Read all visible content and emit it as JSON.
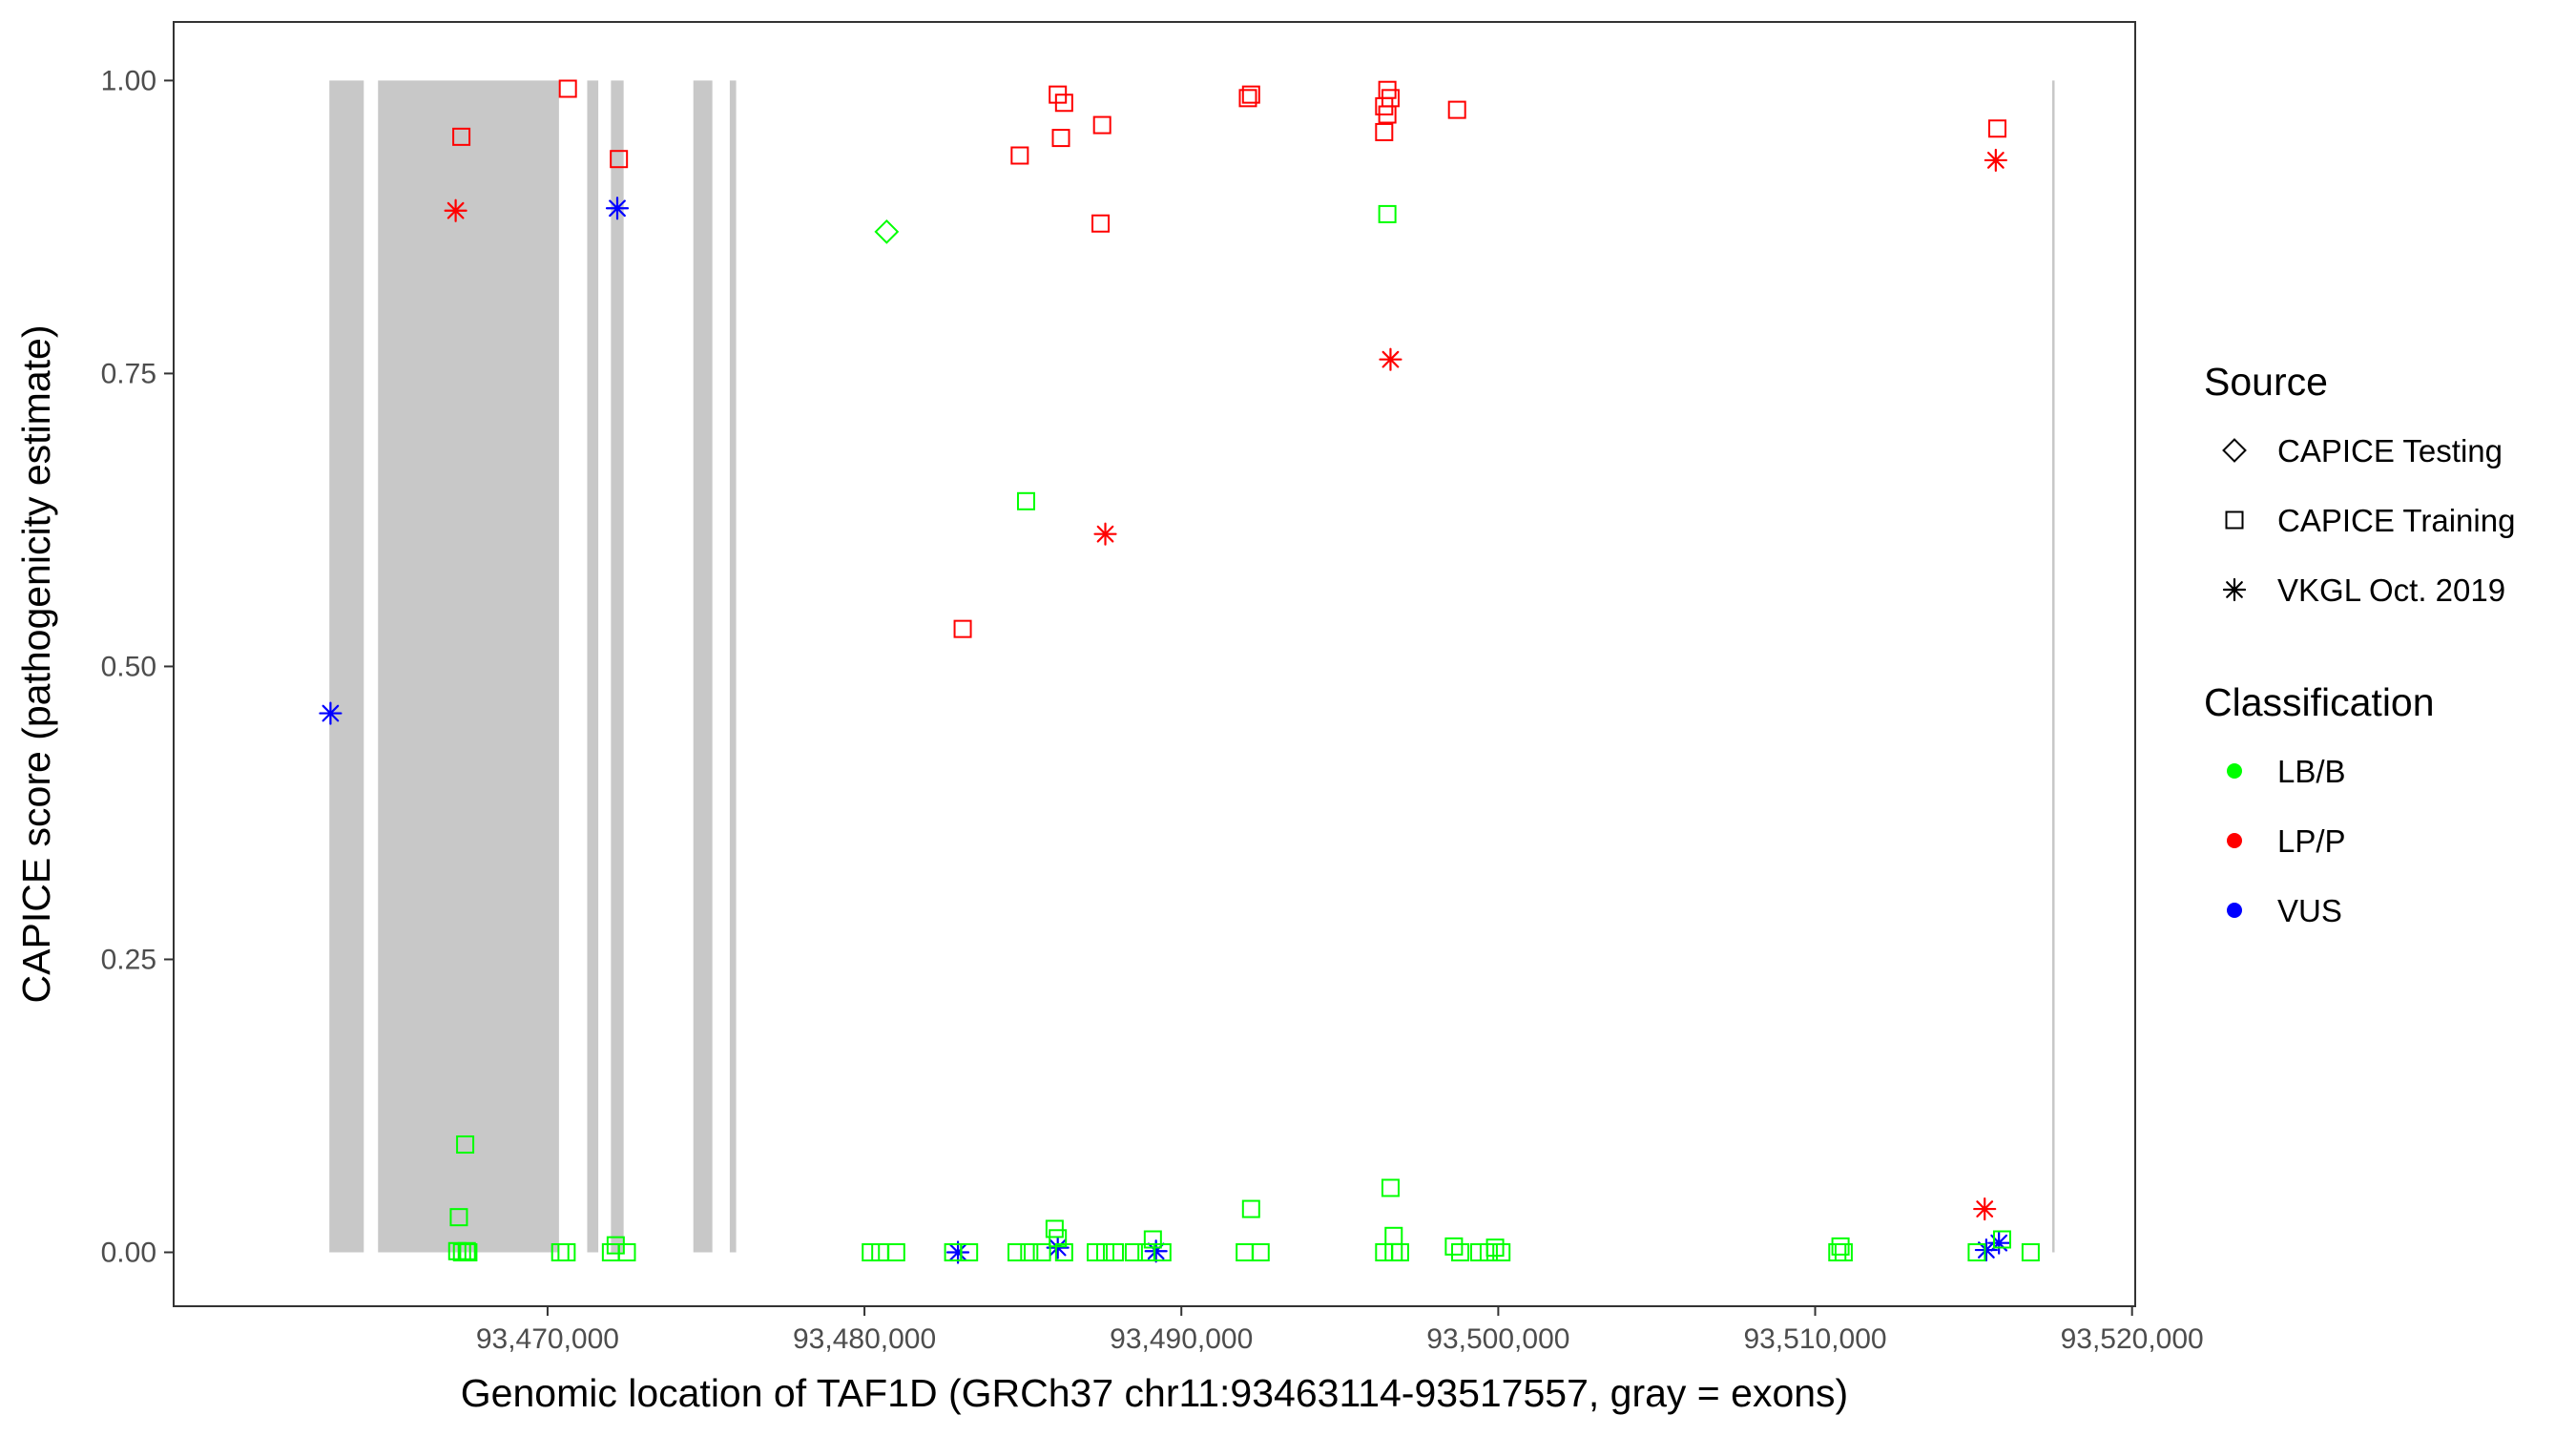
{
  "chart_data": {
    "type": "scatter",
    "title": "",
    "xlabel": "Genomic location of TAF1D (GRCh37 chr11:93463114-93517557, gray = exons)",
    "ylabel": "CAPICE score (pathogenicity estimate)",
    "xlim": [
      93458200,
      93520100
    ],
    "ylim": [
      -0.046,
      1.05
    ],
    "x_ticks": [
      93470000,
      93480000,
      93490000,
      93500000,
      93510000,
      93520000
    ],
    "x_tick_labels": [
      "93,470,000",
      "93,480,000",
      "93,490,000",
      "93,500,000",
      "93,510,000",
      "93,520,000"
    ],
    "y_ticks": [
      0,
      0.25,
      0.5,
      0.75,
      1
    ],
    "y_tick_labels": [
      "0.00",
      "0.25",
      "0.50",
      "0.75",
      "1.00"
    ],
    "grid": false,
    "legend_position": "right",
    "exons": [
      [
        93463114,
        93464200
      ],
      [
        93464650,
        93470360
      ],
      [
        93471250,
        93471600
      ],
      [
        93472000,
        93472400
      ],
      [
        93474600,
        93475200
      ],
      [
        93475750,
        93475950
      ],
      [
        93517480,
        93517557
      ]
    ],
    "legends": [
      {
        "title": "Source",
        "entries": [
          {
            "label": "CAPICE Testing",
            "shape": "diamond"
          },
          {
            "label": "CAPICE Training",
            "shape": "square"
          },
          {
            "label": "VKGL Oct. 2019",
            "shape": "asterisk"
          }
        ]
      },
      {
        "title": "Classification",
        "entries": [
          {
            "label": "LB/B",
            "color": "#00ff00"
          },
          {
            "label": "LP/P",
            "color": "#ff0000"
          },
          {
            "label": "VUS",
            "color": "#0000ff"
          }
        ]
      }
    ],
    "series": [
      {
        "source": "CAPICE Training",
        "class": "LP/P",
        "shape": "square",
        "color": "#ff0000",
        "points": [
          [
            93467280,
            0.952
          ],
          [
            93470640,
            0.993
          ],
          [
            93472250,
            0.933
          ],
          [
            93484900,
            0.936
          ],
          [
            93486100,
            0.988
          ],
          [
            93486300,
            0.981
          ],
          [
            93486200,
            0.951
          ],
          [
            93487500,
            0.962
          ],
          [
            93487450,
            0.878
          ],
          [
            93483100,
            0.532
          ],
          [
            93492100,
            0.985
          ],
          [
            93492200,
            0.988
          ],
          [
            93496500,
            0.992
          ],
          [
            93496600,
            0.985
          ],
          [
            93496400,
            0.978
          ],
          [
            93496500,
            0.971
          ],
          [
            93496400,
            0.956
          ],
          [
            93498700,
            0.975
          ],
          [
            93515750,
            0.959
          ]
        ]
      },
      {
        "source": "VKGL Oct. 2019",
        "class": "LP/P",
        "shape": "asterisk",
        "color": "#ff0000",
        "points": [
          [
            93467100,
            0.889
          ],
          [
            93487600,
            0.613
          ],
          [
            93496600,
            0.762
          ],
          [
            93515700,
            0.932
          ],
          [
            93515350,
            0.037
          ]
        ]
      },
      {
        "source": "VKGL Oct. 2019",
        "class": "VUS",
        "shape": "asterisk",
        "color": "#0000ff",
        "points": [
          [
            93463150,
            0.46
          ],
          [
            93472200,
            0.891
          ],
          [
            93482950,
            0.0
          ],
          [
            93486100,
            0.004
          ],
          [
            93489200,
            0.001
          ],
          [
            93515400,
            0.002
          ],
          [
            93515800,
            0.008
          ]
        ]
      },
      {
        "source": "CAPICE Testing",
        "class": "LB/B",
        "shape": "diamond",
        "color": "#00ff00",
        "points": [
          [
            93480700,
            0.871
          ]
        ]
      },
      {
        "source": "CAPICE Training",
        "class": "LB/B",
        "shape": "square",
        "color": "#00ff00",
        "points": [
          [
            93467400,
            0.092
          ],
          [
            93467200,
            0.03
          ],
          [
            93467150,
            0.001
          ],
          [
            93467300,
            0.0
          ],
          [
            93467450,
            0.001
          ],
          [
            93467500,
            0.0
          ],
          [
            93470400,
            0.0
          ],
          [
            93470600,
            0.0
          ],
          [
            93472000,
            0.0
          ],
          [
            93472150,
            0.006
          ],
          [
            93472500,
            0.0
          ],
          [
            93480200,
            0.0
          ],
          [
            93480500,
            0.0
          ],
          [
            93481000,
            0.0
          ],
          [
            93482800,
            0.0
          ],
          [
            93483300,
            0.0
          ],
          [
            93484800,
            0.0
          ],
          [
            93485200,
            0.0
          ],
          [
            93485600,
            0.0
          ],
          [
            93486000,
            0.02
          ],
          [
            93486100,
            0.012
          ],
          [
            93486300,
            0.0
          ],
          [
            93485100,
            0.641
          ],
          [
            93487300,
            0.0
          ],
          [
            93487600,
            0.0
          ],
          [
            93487900,
            0.0
          ],
          [
            93488500,
            0.0
          ],
          [
            93488900,
            0.0
          ],
          [
            93489100,
            0.011
          ],
          [
            93489400,
            0.0
          ],
          [
            93492000,
            0.0
          ],
          [
            93492200,
            0.037
          ],
          [
            93492500,
            0.0
          ],
          [
            93496500,
            0.886
          ],
          [
            93496600,
            0.055
          ],
          [
            93496700,
            0.014
          ],
          [
            93496400,
            0.0
          ],
          [
            93496700,
            0.0
          ],
          [
            93496900,
            0.0
          ],
          [
            93498600,
            0.005
          ],
          [
            93498800,
            0.0
          ],
          [
            93499400,
            0.0
          ],
          [
            93499700,
            0.0
          ],
          [
            93499900,
            0.004
          ],
          [
            93500100,
            0.0
          ],
          [
            93510800,
            0.005
          ],
          [
            93510700,
            0.0
          ],
          [
            93510900,
            0.0
          ],
          [
            93515100,
            0.0
          ],
          [
            93515900,
            0.011
          ],
          [
            93516800,
            0.0
          ]
        ]
      }
    ]
  }
}
